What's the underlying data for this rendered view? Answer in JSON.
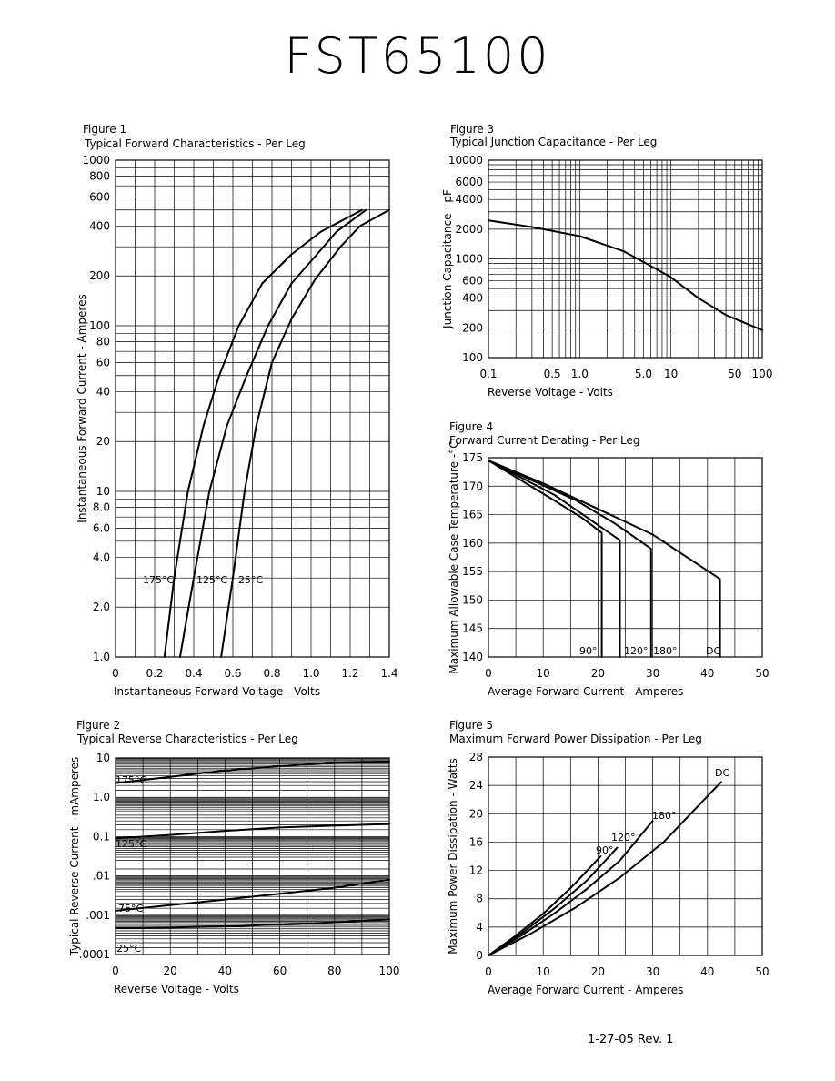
{
  "document": {
    "title": "FST65100",
    "footer": "1-27-05   Rev. 1"
  },
  "chart_data": [
    {
      "id": "fig1",
      "type": "line",
      "caption": "Figure 1",
      "title": "Typical Forward Characteristics - Per Leg",
      "xlabel": "Instantaneous Forward Voltage - Volts",
      "ylabel": "Instantaneous Forward Current - Amperes",
      "xlim": [
        0,
        1.4
      ],
      "ylim": [
        1,
        1000
      ],
      "yscale": "log",
      "grid": true,
      "xticks": [
        "0",
        "0.2",
        "0.4",
        "0.6",
        "0.8",
        "1.0",
        "1.2",
        "1.4"
      ],
      "yticks": [
        "1.0",
        "2.0",
        "4.0",
        "6.0",
        "8.0",
        "10",
        "20",
        "40",
        "60",
        "80",
        "100",
        "200",
        "400",
        "600",
        "800",
        "1000"
      ],
      "series": [
        {
          "name": "175°C",
          "points": [
            [
              0.25,
              1
            ],
            [
              0.3,
              3
            ],
            [
              0.37,
              10
            ],
            [
              0.45,
              25
            ],
            [
              0.53,
              50
            ],
            [
              0.63,
              100
            ],
            [
              0.75,
              180
            ],
            [
              0.9,
              270
            ],
            [
              1.05,
              370
            ],
            [
              1.26,
              500
            ]
          ]
        },
        {
          "name": "125°C",
          "points": [
            [
              0.33,
              1
            ],
            [
              0.4,
              3
            ],
            [
              0.48,
              10
            ],
            [
              0.57,
              25
            ],
            [
              0.67,
              50
            ],
            [
              0.78,
              100
            ],
            [
              0.9,
              180
            ],
            [
              1.03,
              270
            ],
            [
              1.13,
              370
            ],
            [
              1.28,
              500
            ]
          ]
        },
        {
          "name": "25°C",
          "points": [
            [
              0.54,
              1
            ],
            [
              0.6,
              3
            ],
            [
              0.66,
              10
            ],
            [
              0.72,
              25
            ],
            [
              0.8,
              60
            ],
            [
              0.9,
              110
            ],
            [
              1.02,
              190
            ],
            [
              1.15,
              300
            ],
            [
              1.25,
              400
            ],
            [
              1.4,
              500
            ]
          ]
        }
      ]
    },
    {
      "id": "fig2",
      "type": "line",
      "caption": "Figure 2",
      "title": "Typical Reverse Characteristics - Per Leg",
      "xlabel": "Reverse Voltage - Volts",
      "ylabel": "Typical Reverse Current - mAmperes",
      "xlim": [
        0,
        100
      ],
      "ylim": [
        0.0001,
        10
      ],
      "yscale": "log",
      "grid": true,
      "xticks": [
        "0",
        "20",
        "40",
        "60",
        "80",
        "100"
      ],
      "yticks": [
        ".0001",
        ".001",
        ".01",
        "0.1",
        "1.0",
        "10"
      ],
      "series": [
        {
          "name": "175°C",
          "points": [
            [
              0,
              2.3
            ],
            [
              20,
              3.3
            ],
            [
              40,
              4.8
            ],
            [
              60,
              6.2
            ],
            [
              80,
              7.6
            ],
            [
              100,
              8.1
            ]
          ]
        },
        {
          "name": "125°C",
          "points": [
            [
              0,
              0.09
            ],
            [
              20,
              0.11
            ],
            [
              40,
              0.14
            ],
            [
              60,
              0.17
            ],
            [
              80,
              0.19
            ],
            [
              100,
              0.21
            ]
          ]
        },
        {
          "name": "75°C",
          "points": [
            [
              0,
              0.0013
            ],
            [
              20,
              0.0018
            ],
            [
              40,
              0.0025
            ],
            [
              60,
              0.0035
            ],
            [
              80,
              0.005
            ],
            [
              100,
              0.008
            ]
          ]
        },
        {
          "name": "25°C",
          "points": [
            [
              0,
              0.00048
            ],
            [
              20,
              0.00049
            ],
            [
              40,
              0.00052
            ],
            [
              60,
              0.00058
            ],
            [
              80,
              0.00066
            ],
            [
              100,
              0.00078
            ]
          ]
        }
      ]
    },
    {
      "id": "fig3",
      "type": "line",
      "caption": "Figure 3",
      "title": "Typical Junction Capacitance - Per Leg",
      "xlabel": "Reverse Voltage - Volts",
      "ylabel": "Junction Capacitance - pF",
      "xlim": [
        0.1,
        100
      ],
      "ylim": [
        100,
        10000
      ],
      "xscale": "log",
      "yscale": "log",
      "grid": true,
      "xticks": [
        "0.1",
        "0.5",
        "1.0",
        "5.0",
        "10",
        "50",
        "100"
      ],
      "yticks": [
        "100",
        "200",
        "400",
        "600",
        "1000",
        "2000",
        "4000",
        "6000",
        "10000"
      ],
      "series": [
        {
          "name": "",
          "points": [
            [
              0.1,
              2450
            ],
            [
              0.3,
              2100
            ],
            [
              1,
              1700
            ],
            [
              3,
              1200
            ],
            [
              6,
              850
            ],
            [
              10,
              650
            ],
            [
              20,
              400
            ],
            [
              40,
              270
            ],
            [
              100,
              190
            ]
          ]
        }
      ]
    },
    {
      "id": "fig4",
      "type": "line",
      "caption": "Figure 4",
      "title": "Forward Current Derating - Per Leg",
      "xlabel": "Average Forward Current - Amperes",
      "ylabel": "Maximum Allowable Case Temperature -°C",
      "xlim": [
        0,
        50
      ],
      "ylim": [
        140,
        175
      ],
      "grid": true,
      "xticks": [
        "0",
        "10",
        "20",
        "30",
        "40",
        "50"
      ],
      "yticks": [
        "140",
        "145",
        "150",
        "155",
        "160",
        "165",
        "170",
        "175"
      ],
      "series": [
        {
          "name": "90°",
          "points": [
            [
              0,
              174.5
            ],
            [
              6,
              171
            ],
            [
              12,
              167.5
            ],
            [
              17,
              164.5
            ],
            [
              20.7,
              161.8
            ],
            [
              20.7,
              140
            ]
          ]
        },
        {
          "name": "120°",
          "points": [
            [
              0,
              174.5
            ],
            [
              6,
              171.5
            ],
            [
              12,
              168.5
            ],
            [
              18,
              164.5
            ],
            [
              24,
              160.5
            ],
            [
              24,
              140
            ]
          ]
        },
        {
          "name": "180°",
          "points": [
            [
              0,
              174.5
            ],
            [
              8,
              171
            ],
            [
              16,
              167.5
            ],
            [
              23,
              163.5
            ],
            [
              29.7,
              159
            ],
            [
              29.7,
              140
            ]
          ]
        },
        {
          "name": "DC",
          "points": [
            [
              0,
              174.5
            ],
            [
              10,
              170.5
            ],
            [
              20,
              166
            ],
            [
              30,
              161.5
            ],
            [
              42.3,
              153.7
            ],
            [
              42.3,
              140
            ]
          ]
        }
      ]
    },
    {
      "id": "fig5",
      "type": "line",
      "caption": "Figure 5",
      "title": "Maximum Forward Power Dissipation - Per Leg",
      "xlabel": "Average Forward Current - Amperes",
      "ylabel": "Maximum Power Dissipation - Watts",
      "xlim": [
        0,
        50
      ],
      "ylim": [
        0,
        28
      ],
      "grid": true,
      "xticks": [
        "0",
        "10",
        "20",
        "30",
        "40",
        "50"
      ],
      "yticks": [
        "0",
        "4",
        "8",
        "12",
        "16",
        "20",
        "24",
        "28"
      ],
      "series": [
        {
          "name": "90°",
          "points": [
            [
              0,
              0
            ],
            [
              5,
              2.8
            ],
            [
              10,
              5.9
            ],
            [
              15,
              9.5
            ],
            [
              20.5,
              14
            ]
          ]
        },
        {
          "name": "120°",
          "points": [
            [
              0,
              0
            ],
            [
              6,
              3.1
            ],
            [
              12,
              6.6
            ],
            [
              18,
              10.6
            ],
            [
              23.5,
              15.2
            ]
          ]
        },
        {
          "name": "180°",
          "points": [
            [
              0,
              0
            ],
            [
              6,
              2.8
            ],
            [
              12,
              5.9
            ],
            [
              18,
              9.4
            ],
            [
              24,
              13.4
            ],
            [
              30,
              19
            ]
          ]
        },
        {
          "name": "DC",
          "points": [
            [
              0,
              0
            ],
            [
              8,
              3.2
            ],
            [
              16,
              6.8
            ],
            [
              24,
              11
            ],
            [
              32,
              16
            ],
            [
              42.5,
              24.5
            ]
          ]
        }
      ]
    }
  ]
}
